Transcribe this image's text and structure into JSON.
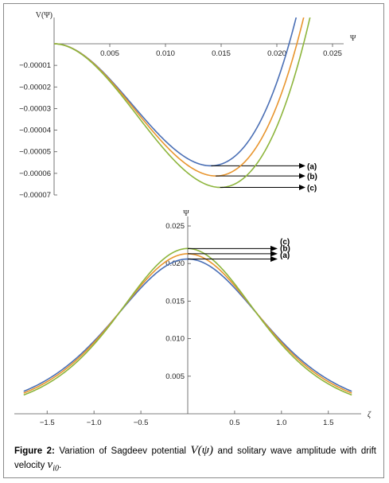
{
  "chart_data": [
    {
      "type": "line",
      "title": "",
      "xlabel": "Ψ",
      "ylabel": "V(Ψ)",
      "xlim": [
        0,
        0.026
      ],
      "ylim": [
        -7e-05,
        0.0
      ],
      "x_ticks": [
        0.005,
        0.01,
        0.015,
        0.02,
        0.025
      ],
      "x_tick_labels": [
        "0.005",
        "0.010",
        "0.015",
        "0.020",
        "0.025"
      ],
      "y_ticks": [
        -1e-05,
        -2e-05,
        -3e-05,
        -4e-05,
        -5e-05,
        -6e-05,
        -7e-05
      ],
      "y_tick_labels": [
        "-0.00001",
        "-0.00002",
        "-0.00003",
        "-0.00004",
        "-0.00005",
        "-0.00006",
        "-0.00007"
      ],
      "series": [
        {
          "name": "(a)",
          "color": "#4a6fb5",
          "root": 0.0211,
          "min_x": 0.0141,
          "min_v": -5.65e-05
        },
        {
          "name": "(b)",
          "color": "#e8952e",
          "root": 0.0218,
          "min_x": 0.0145,
          "min_v": -6.12e-05
        },
        {
          "name": "(c)",
          "color": "#8db53c",
          "root": 0.0224,
          "min_x": 0.0149,
          "min_v": -6.65e-05
        }
      ],
      "annotations": [
        "(a)",
        "(b)",
        "(c)"
      ]
    },
    {
      "type": "line",
      "title": "",
      "xlabel": "ζ",
      "ylabel": "Ψ",
      "xlim": [
        -1.85,
        1.85
      ],
      "ylim": [
        0.0,
        0.025
      ],
      "x_ticks": [
        -1.5,
        -1.0,
        -0.5,
        0.5,
        1.0,
        1.5
      ],
      "x_tick_labels": [
        "-1.5",
        "-1.0",
        "-0.5",
        "0.5",
        "1.0",
        "1.5"
      ],
      "y_ticks": [
        0.005,
        0.01,
        0.015,
        0.02,
        0.025
      ],
      "y_tick_labels": [
        "0.005",
        "0.010",
        "0.015",
        "0.020",
        "0.025"
      ],
      "series": [
        {
          "name": "(a)",
          "color": "#4a6fb5",
          "amplitude": 0.0206,
          "width": 1.08
        },
        {
          "name": "(b)",
          "color": "#e8952e",
          "amplitude": 0.0213,
          "width": 1.04
        },
        {
          "name": "(c)",
          "color": "#8db53c",
          "amplitude": 0.022,
          "width": 1.0
        }
      ],
      "annotations": [
        "(c)",
        "(b)",
        "(a)"
      ]
    }
  ],
  "caption": {
    "label": "Figure 2:",
    "text_before": " Variation of Sagdeev potential ",
    "math_potential": "V(ψ)",
    "text_middle": " and solitary wave amplitude with drift velocity ",
    "math_velocity": "ν",
    "math_velocity_sub": "i0",
    "text_after": "."
  }
}
